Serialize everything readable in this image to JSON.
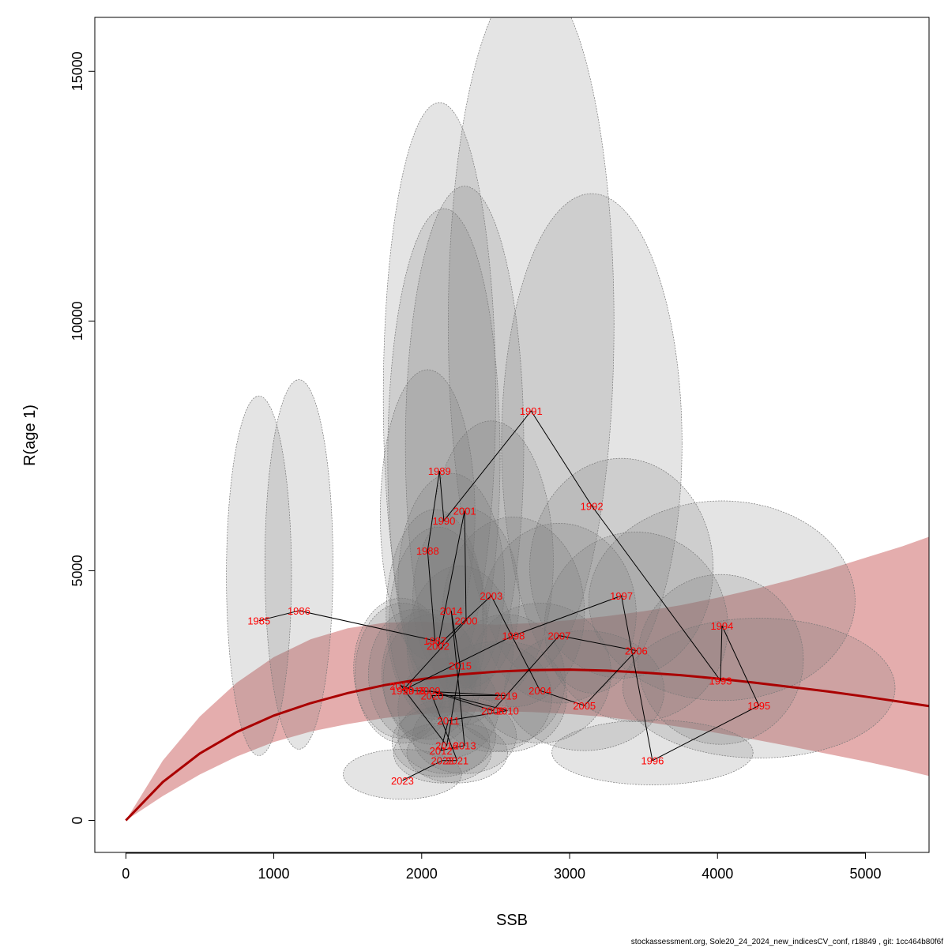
{
  "footer_text": "stockassessment.org, Sole20_24_2024_new_indicesCV_conf, r18849 , git: 1cc464b80f6f",
  "chart_data": {
    "type": "scatter",
    "title": "",
    "xlabel": "SSB",
    "ylabel": "R(age 1)",
    "xlim": [
      -210,
      5430
    ],
    "ylim": [
      -640,
      16080
    ],
    "x_ticks": [
      0,
      1000,
      2000,
      3000,
      4000,
      5000
    ],
    "y_ticks": [
      0,
      5000,
      10000,
      15000
    ],
    "grid": false,
    "legend": "none",
    "colors": {
      "points_label": "#ff0000",
      "path": "#000000",
      "ellipse_fill": "rgba(120,120,120,0.2)",
      "ellipse_stroke": "#777777",
      "sr_curve": "#aa0000",
      "sr_band": "rgba(190,60,60,0.42)"
    },
    "sr_curve": {
      "x": [
        0,
        250,
        500,
        750,
        1000,
        1250,
        1500,
        1750,
        2000,
        2250,
        2500,
        2750,
        3000,
        3250,
        3500,
        3750,
        4000,
        4250,
        4500,
        4750,
        5000,
        5250,
        5430
      ],
      "y": [
        0,
        770,
        1340,
        1770,
        2100,
        2350,
        2550,
        2710,
        2830,
        2920,
        2980,
        3010,
        3020,
        3000,
        2960,
        2910,
        2840,
        2760,
        2670,
        2580,
        2480,
        2370,
        2290
      ],
      "lower": [
        0,
        490,
        920,
        1280,
        1570,
        1780,
        1930,
        2050,
        2130,
        2170,
        2190,
        2170,
        2130,
        2070,
        1980,
        1870,
        1750,
        1620,
        1480,
        1330,
        1180,
        1020,
        890
      ],
      "upper": [
        0,
        1200,
        2080,
        2760,
        3270,
        3630,
        3850,
        3960,
        3980,
        3950,
        3920,
        3950,
        4010,
        4090,
        4190,
        4310,
        4460,
        4630,
        4820,
        5030,
        5260,
        5490,
        5680
      ]
    },
    "points": [
      {
        "year": "1985",
        "ssb": 900,
        "r": 4000,
        "ci_ssb": 220,
        "ci_r": 3600
      },
      {
        "year": "1986",
        "ssb": 1170,
        "r": 4200,
        "ci_ssb": 230,
        "ci_r": 3700
      },
      {
        "year": "1987",
        "ssb": 2090,
        "r": 3600,
        "ci_ssb": 330,
        "ci_r": 2100
      },
      {
        "year": "1988",
        "ssb": 2040,
        "r": 5400,
        "ci_ssb": 320,
        "ci_r": 2900
      },
      {
        "year": "1989",
        "ssb": 2120,
        "r": 7000,
        "ci_ssb": 380,
        "ci_r": 5900
      },
      {
        "year": "1990",
        "ssb": 2150,
        "r": 6000,
        "ci_ssb": 380,
        "ci_r": 5000
      },
      {
        "year": "1991",
        "ssb": 2740,
        "r": 8200,
        "ci_ssb": 560,
        "ci_r": 7000
      },
      {
        "year": "1992",
        "ssb": 3150,
        "r": 6300,
        "ci_ssb": 610,
        "ci_r": 5000
      },
      {
        "year": "1993",
        "ssb": 4020,
        "r": 2800,
        "ci_ssb": 560,
        "ci_r": 1700
      },
      {
        "year": "1994",
        "ssb": 4030,
        "r": 3900,
        "ci_ssb": 900,
        "ci_r": 2000
      },
      {
        "year": "1995",
        "ssb": 4280,
        "r": 2300,
        "ci_ssb": 920,
        "ci_r": 1400
      },
      {
        "year": "1996",
        "ssb": 3560,
        "r": 1200,
        "ci_ssb": 680,
        "ci_r": 650
      },
      {
        "year": "1997",
        "ssb": 3350,
        "r": 4500,
        "ci_ssb": 620,
        "ci_r": 2200
      },
      {
        "year": "1998",
        "ssb": 2620,
        "r": 3700,
        "ci_ssb": 480,
        "ci_r": 1900
      },
      {
        "year": "1999",
        "ssb": 1870,
        "r": 2600,
        "ci_ssb": 320,
        "ci_r": 1400
      },
      {
        "year": "2000",
        "ssb": 2300,
        "r": 4000,
        "ci_ssb": 360,
        "ci_r": 1800
      },
      {
        "year": "2001",
        "ssb": 2290,
        "r": 6200,
        "ci_ssb": 400,
        "ci_r": 5200
      },
      {
        "year": "2002",
        "ssb": 2110,
        "r": 3500,
        "ci_ssb": 330,
        "ci_r": 1900
      },
      {
        "year": "2003",
        "ssb": 2470,
        "r": 4500,
        "ci_ssb": 420,
        "ci_r": 2800
      },
      {
        "year": "2004",
        "ssb": 2800,
        "r": 2600,
        "ci_ssb": 480,
        "ci_r": 1400
      },
      {
        "year": "2005",
        "ssb": 3100,
        "r": 2300,
        "ci_ssb": 540,
        "ci_r": 1200
      },
      {
        "year": "2006",
        "ssb": 3450,
        "r": 3400,
        "ci_ssb": 620,
        "ci_r": 1900
      },
      {
        "year": "2007",
        "ssb": 2930,
        "r": 3700,
        "ci_ssb": 520,
        "ci_r": 1800
      },
      {
        "year": "2008",
        "ssb": 2480,
        "r": 2200,
        "ci_ssb": 400,
        "ci_r": 1100
      },
      {
        "year": "2009",
        "ssb": 2050,
        "r": 2600,
        "ci_ssb": 320,
        "ci_r": 1300
      },
      {
        "year": "2010",
        "ssb": 2580,
        "r": 2200,
        "ci_ssb": 400,
        "ci_r": 1100
      },
      {
        "year": "2011",
        "ssb": 2180,
        "r": 2000,
        "ci_ssb": 340,
        "ci_r": 1000
      },
      {
        "year": "2012",
        "ssb": 2130,
        "r": 1400,
        "ci_ssb": 330,
        "ci_r": 700
      },
      {
        "year": "2013",
        "ssb": 2290,
        "r": 1500,
        "ci_ssb": 350,
        "ci_r": 750
      },
      {
        "year": "2014",
        "ssb": 2200,
        "r": 4200,
        "ci_ssb": 360,
        "ci_r": 2200
      },
      {
        "year": "2015",
        "ssb": 2260,
        "r": 3100,
        "ci_ssb": 360,
        "ci_r": 1600
      },
      {
        "year": "2016",
        "ssb": 2170,
        "r": 1500,
        "ci_ssb": 330,
        "ci_r": 750
      },
      {
        "year": "2017",
        "ssb": 1860,
        "r": 2700,
        "ci_ssb": 320,
        "ci_r": 1400
      },
      {
        "year": "2018",
        "ssb": 1950,
        "r": 2600,
        "ci_ssb": 310,
        "ci_r": 1300
      },
      {
        "year": "2019",
        "ssb": 2570,
        "r": 2500,
        "ci_ssb": 400,
        "ci_r": 1300
      },
      {
        "year": "2020",
        "ssb": 2070,
        "r": 2500,
        "ci_ssb": 330,
        "ci_r": 1300
      },
      {
        "year": "2021",
        "ssb": 2240,
        "r": 1200,
        "ci_ssb": 340,
        "ci_r": 600
      },
      {
        "year": "2022",
        "ssb": 2140,
        "r": 1200,
        "ci_ssb": 330,
        "ci_r": 600
      },
      {
        "year": "2023",
        "ssb": 1870,
        "r": 800,
        "ci_ssb": 400,
        "ci_r": 500
      }
    ]
  }
}
